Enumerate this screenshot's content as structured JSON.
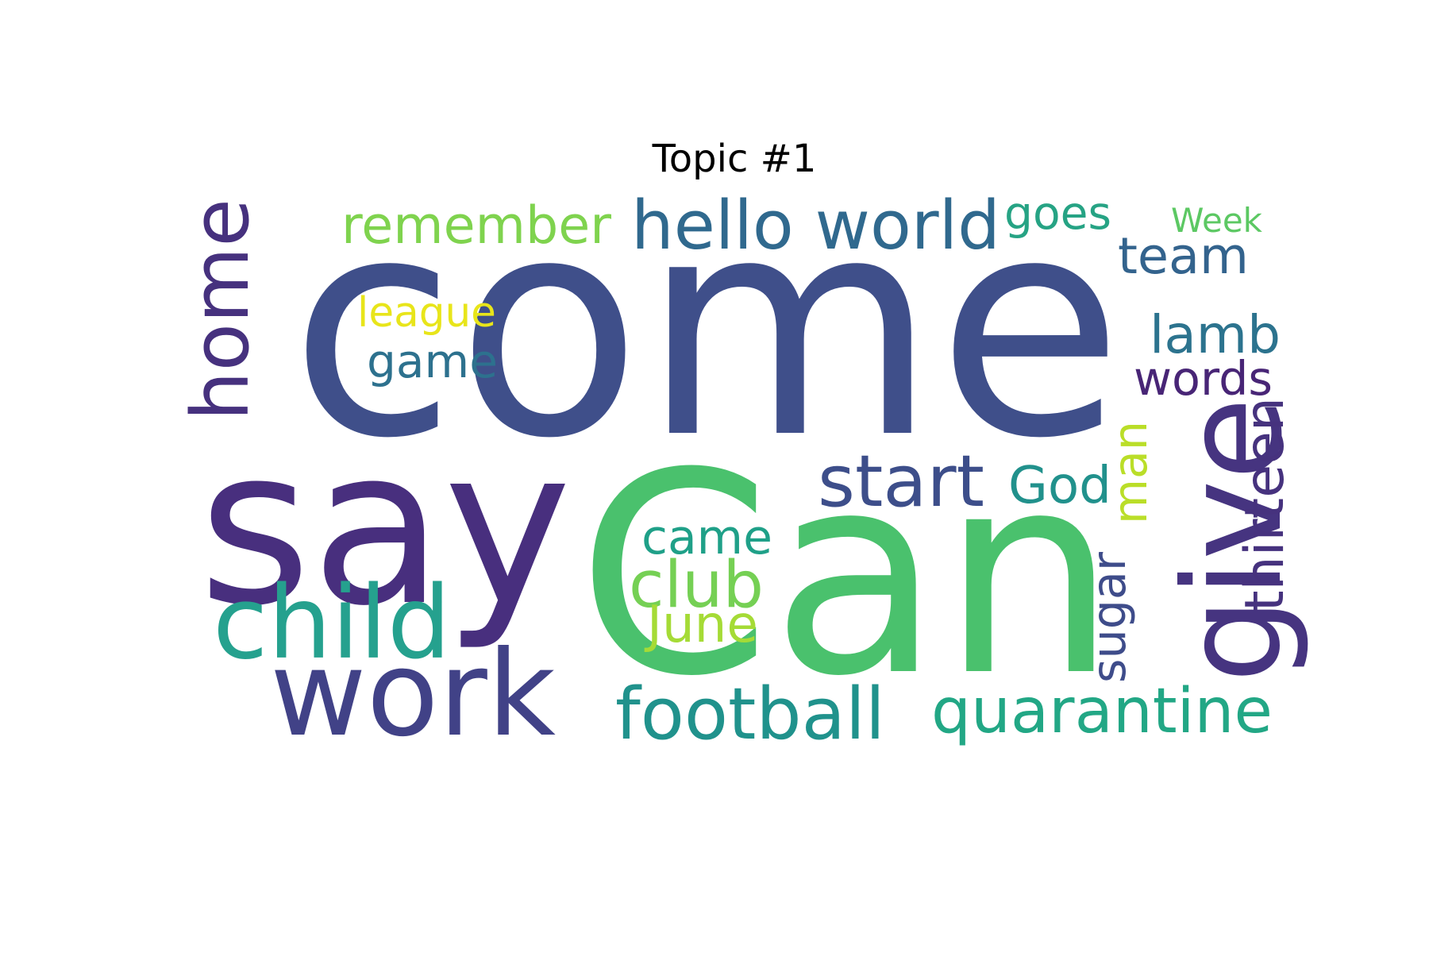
{
  "title": "Topic #1",
  "words": [
    {
      "text": "come",
      "color": "#3f4f8a"
    },
    {
      "text": "Can",
      "color": "#4ac16d"
    },
    {
      "text": "say",
      "color": "#482f7e"
    },
    {
      "text": "work",
      "color": "#414287"
    },
    {
      "text": "home",
      "color": "#46317e"
    },
    {
      "text": "give",
      "color": "#463480"
    },
    {
      "text": "child",
      "color": "#25a18e"
    },
    {
      "text": "remember",
      "color": "#7fd34e"
    },
    {
      "text": "hello world",
      "color": "#30698e"
    },
    {
      "text": "goes",
      "color": "#26a384"
    },
    {
      "text": "Week",
      "color": "#5cc863"
    },
    {
      "text": "team",
      "color": "#33638d"
    },
    {
      "text": "league",
      "color": "#e8e51a"
    },
    {
      "text": "game",
      "color": "#2d718e"
    },
    {
      "text": "lamb",
      "color": "#2c738e"
    },
    {
      "text": "words",
      "color": "#482576"
    },
    {
      "text": "start",
      "color": "#3d4e8a"
    },
    {
      "text": "God",
      "color": "#21918c"
    },
    {
      "text": "man",
      "color": "#bade28"
    },
    {
      "text": "thirteen",
      "color": "#46327e"
    },
    {
      "text": "came",
      "color": "#1fa088"
    },
    {
      "text": "club",
      "color": "#75d054"
    },
    {
      "text": "June",
      "color": "#a5db36"
    },
    {
      "text": "sugar",
      "color": "#3e4c8a"
    },
    {
      "text": "football",
      "color": "#20928c"
    },
    {
      "text": "quarantine",
      "color": "#22a785"
    }
  ]
}
